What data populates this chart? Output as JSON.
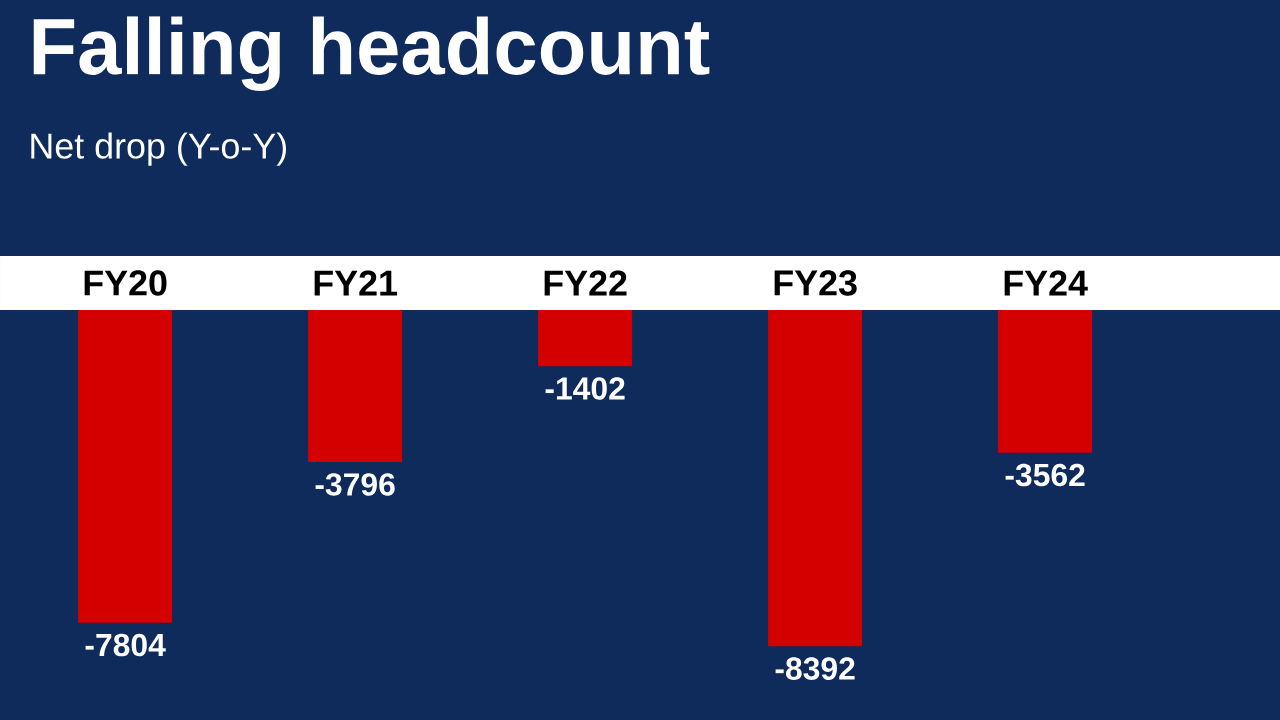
{
  "chart_data": {
    "type": "bar",
    "title": "Falling headcount",
    "subtitle": "Net drop (Y-o-Y)",
    "categories": [
      "FY20",
      "FY21",
      "FY22",
      "FY23",
      "FY24"
    ],
    "values": [
      -7804,
      -3796,
      -1402,
      -8392,
      -3562
    ],
    "color": "#d40000",
    "data_labels": true
  }
}
